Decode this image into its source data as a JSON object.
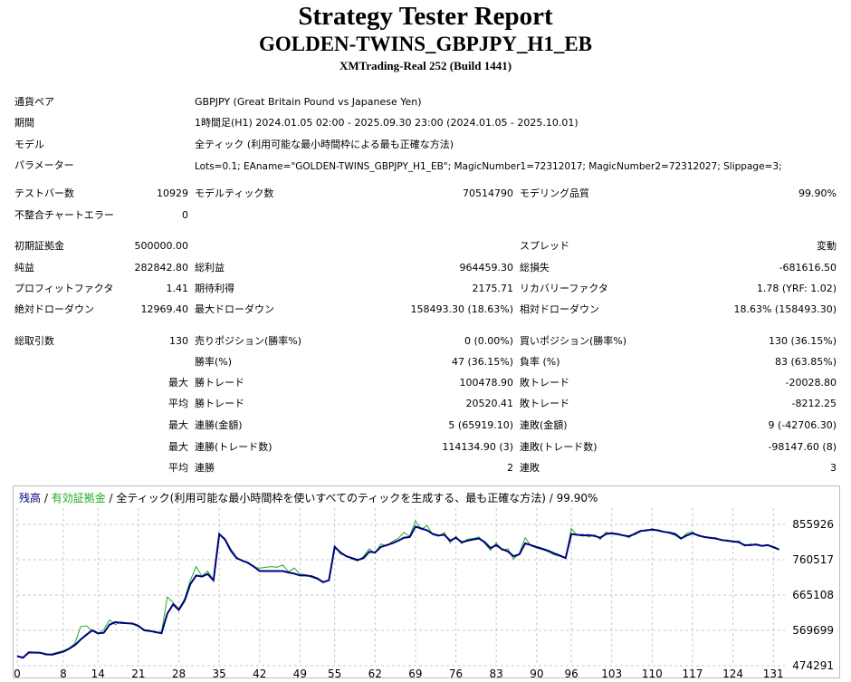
{
  "header": {
    "title": "Strategy Tester Report",
    "subtitle": "GOLDEN-TWINS_GBPJPY_H1_EB",
    "server": "XMTrading-Real 252 (Build 1441)"
  },
  "info": {
    "symbol_label": "通貨ペア",
    "symbol_value": "GBPJPY (Great Britain Pound vs Japanese Yen)",
    "period_label": "期間",
    "period_value": "1時間足(H1) 2024.01.05 02:00 - 2025.09.30 23:00 (2024.01.05 - 2025.10.01)",
    "model_label": "モデル",
    "model_value": "全ティック (利用可能な最小時間枠による最も正確な方法)",
    "params_label": "パラメーター",
    "params_value": "Lots=0.1; EAname=\"GOLDEN-TWINS_GBPJPY_H1_EB\"; MagicNumber1=72312017; MagicNumber2=72312027; Slippage=3;"
  },
  "stats": {
    "bars_label": "テストバー数",
    "bars_value": "10929",
    "ticks_label": "モデルティック数",
    "ticks_value": "70514790",
    "quality_label": "モデリング品質",
    "quality_value": "99.90%",
    "mismatch_label": "不整合チャートエラー",
    "mismatch_value": "0",
    "deposit_label": "初期証拠金",
    "deposit_value": "500000.00",
    "spread_label": "スプレッド",
    "spread_value": "変動",
    "net_label": "純益",
    "net_value": "282842.80",
    "gross_profit_label": "総利益",
    "gross_profit_value": "964459.30",
    "gross_loss_label": "総損失",
    "gross_loss_value": "-681616.50",
    "pf_label": "プロフィットファクタ",
    "pf_value": "1.41",
    "payoff_label": "期待利得",
    "payoff_value": "2175.71",
    "recovery_label": "リカバリーファクタ",
    "recovery_value": "1.78 (YRF: 1.02)",
    "abs_dd_label": "絶対ドローダウン",
    "abs_dd_value": "12969.40",
    "max_dd_label": "最大ドローダウン",
    "max_dd_value": "158493.30 (18.63%)",
    "rel_dd_label": "相対ドローダウン",
    "rel_dd_value": "18.63% (158493.30)",
    "trades_label": "総取引数",
    "trades_value": "130",
    "short_label": "売りポジション(勝率%)",
    "short_value": "0 (0.00%)",
    "long_label": "買いポジション(勝率%)",
    "long_value": "130 (36.15%)",
    "winrate_label": "勝率(%)",
    "winrate_value": "47 (36.15%)",
    "lossrate_label": "負率 (%)",
    "lossrate_value": "83 (63.85%)",
    "max_prefix": "最大",
    "avg_prefix": "平均",
    "largest_win_label": "勝トレード",
    "largest_win_value": "100478.90",
    "largest_loss_label": "敗トレード",
    "largest_loss_value": "-20028.80",
    "avg_win_label": "勝トレード",
    "avg_win_value": "20520.41",
    "avg_loss_label": "敗トレード",
    "avg_loss_value": "-8212.25",
    "max_consec_win_label": "連勝(金額)",
    "max_consec_win_value": "5 (65919.10)",
    "max_consec_loss_label": "連敗(金額)",
    "max_consec_loss_value": "9 (-42706.30)",
    "max_consec_profit_label": "連勝(トレード数)",
    "max_consec_profit_value": "114134.90 (3)",
    "max_consec_lossamt_label": "連敗(トレード数)",
    "max_consec_lossamt_value": "-98147.60 (8)",
    "avg_consec_win_label": "連勝",
    "avg_consec_win_value": "2",
    "avg_consec_loss_label": "連敗",
    "avg_consec_loss_value": "3"
  },
  "chart_data": {
    "type": "line",
    "legend": {
      "balance": "残高",
      "sep1": " / ",
      "equity": "有効証拠金",
      "sep2": " / 全ティック(利用可能な最小時間枠を使いすべてのティックを生成する、最も正確な方法) / 99.90%"
    },
    "colors": {
      "balance": "#000080",
      "equity": "#22aa22",
      "grid": "#c8c8c8"
    },
    "grid": true,
    "ylim": [
      474291,
      900000
    ],
    "xlim": [
      0,
      133
    ],
    "y_ticks": [
      "855926",
      "760517",
      "665108",
      "569699",
      "474291"
    ],
    "y_tick_values": [
      855926,
      760517,
      665108,
      569699,
      474291
    ],
    "x_ticks": [
      "0",
      "8",
      "14",
      "21",
      "28",
      "35",
      "42",
      "49",
      "55",
      "62",
      "69",
      "76",
      "83",
      "90",
      "96",
      "103",
      "110",
      "117",
      "124",
      "131"
    ],
    "x_tick_values": [
      0,
      8,
      14,
      21,
      28,
      35,
      42,
      49,
      55,
      62,
      69,
      76,
      83,
      90,
      96,
      103,
      110,
      117,
      124,
      131
    ],
    "series": [
      {
        "name": "残高",
        "x": [
          0,
          1,
          2,
          4,
          5,
          6,
          8,
          9,
          10,
          11,
          12,
          13,
          14,
          15,
          16,
          17,
          18,
          20,
          21,
          22,
          23,
          24,
          25,
          26,
          27,
          28,
          29,
          30,
          31,
          32,
          33,
          34,
          35,
          36,
          37,
          38,
          39,
          40,
          41,
          42,
          44,
          45,
          46,
          47,
          48,
          49,
          50,
          51,
          52,
          53,
          54,
          55,
          56,
          57,
          58,
          59,
          60,
          61,
          62,
          63,
          64,
          65,
          66,
          67,
          68,
          69,
          70,
          71,
          72,
          73,
          74,
          75,
          76,
          77,
          78,
          79,
          80,
          81,
          82,
          83,
          84,
          85,
          86,
          87,
          88,
          89,
          90,
          91,
          92,
          93,
          94,
          95,
          96,
          97,
          98,
          99,
          100,
          101,
          102,
          103,
          104,
          105,
          106,
          107,
          108,
          109,
          110,
          111,
          112,
          113,
          114,
          115,
          116,
          117,
          118,
          119,
          120,
          121,
          122,
          123,
          124,
          125,
          126,
          127,
          128,
          129,
          130,
          131,
          132
        ],
        "y": [
          500000,
          496000,
          510000,
          509000,
          505000,
          504000,
          512000,
          520000,
          530000,
          545000,
          558000,
          570000,
          562000,
          563000,
          585000,
          592000,
          590000,
          588000,
          582000,
          570000,
          568000,
          565000,
          562000,
          615000,
          640000,
          625000,
          650000,
          695000,
          718000,
          715000,
          722000,
          705000,
          830000,
          815000,
          785000,
          765000,
          758000,
          752000,
          742000,
          730000,
          730000,
          730000,
          730000,
          726000,
          723000,
          718000,
          718000,
          716000,
          710000,
          700000,
          705000,
          795000,
          780000,
          770000,
          765000,
          760000,
          765000,
          782000,
          780000,
          795000,
          800000,
          805000,
          812000,
          820000,
          822000,
          850000,
          845000,
          840000,
          830000,
          826000,
          828000,
          812000,
          820000,
          808000,
          812000,
          815000,
          818000,
          808000,
          792000,
          800000,
          789000,
          783000,
          770000,
          775000,
          805000,
          800000,
          795000,
          790000,
          785000,
          778000,
          772000,
          765000,
          830000,
          828000,
          826000,
          827000,
          825000,
          820000,
          830000,
          832000,
          830000,
          826000,
          824000,
          830000,
          838000,
          840000,
          842000,
          840000,
          836000,
          834000,
          830000,
          818000,
          826000,
          832000,
          826000,
          822000,
          820000,
          818000,
          814000,
          812000,
          810000,
          808000,
          800000,
          800000,
          802000,
          798000,
          800000,
          795000,
          788000
        ]
      },
      {
        "name": "有効証拠金",
        "x": [
          0,
          1,
          2,
          4,
          5,
          6,
          8,
          9,
          10,
          11,
          12,
          13,
          14,
          15,
          16,
          17,
          18,
          20,
          21,
          22,
          23,
          24,
          25,
          26,
          27,
          28,
          29,
          30,
          31,
          32,
          33,
          34,
          35,
          36,
          37,
          38,
          39,
          40,
          41,
          42,
          44,
          45,
          46,
          47,
          48,
          49,
          50,
          51,
          52,
          53,
          54,
          55,
          56,
          57,
          58,
          59,
          60,
          61,
          62,
          63,
          64,
          65,
          66,
          67,
          68,
          69,
          70,
          71,
          72,
          73,
          74,
          75,
          76,
          77,
          78,
          79,
          80,
          81,
          82,
          83,
          84,
          85,
          86,
          87,
          88,
          89,
          90,
          91,
          92,
          93,
          94,
          95,
          96,
          97,
          98,
          99,
          100,
          101,
          102,
          103,
          104,
          105,
          106,
          107,
          108,
          109,
          110,
          111,
          112,
          113,
          114,
          115,
          116,
          117,
          118,
          119,
          120,
          121,
          122,
          123,
          124,
          125,
          126,
          127,
          128,
          129,
          130,
          131,
          132
        ],
        "y": [
          502000,
          494000,
          512000,
          510000,
          503000,
          506000,
          515000,
          522000,
          535000,
          580000,
          582000,
          568000,
          560000,
          572000,
          598000,
          585000,
          593000,
          586000,
          580000,
          572000,
          570000,
          563000,
          565000,
          660000,
          645000,
          628000,
          655000,
          705000,
          742000,
          716000,
          730000,
          706000,
          830000,
          818000,
          790000,
          768000,
          756000,
          754000,
          740000,
          738000,
          742000,
          740000,
          746000,
          728000,
          738000,
          722000,
          720000,
          713000,
          708000,
          698000,
          706000,
          798000,
          776000,
          772000,
          762000,
          757000,
          770000,
          790000,
          778000,
          803000,
          798000,
          810000,
          818000,
          834000,
          824000,
          866000,
          842000,
          853000,
          828000,
          824000,
          834000,
          806000,
          824000,
          804000,
          816000,
          818000,
          822000,
          804000,
          786000,
          806000,
          786000,
          790000,
          762000,
          778000,
          820000,
          798000,
          792000,
          788000,
          782000,
          774000,
          770000,
          765000,
          845000,
          826000,
          830000,
          822000,
          828000,
          815000,
          835000,
          830000,
          828000,
          826000,
          820000,
          833000,
          840000,
          838000,
          845000,
          838000,
          836000,
          832000,
          826000,
          816000,
          832000,
          836000,
          824000,
          824000,
          818000,
          820000,
          812000,
          814000,
          808000,
          812000,
          797000,
          803000,
          800000,
          798000,
          802000,
          792000,
          790000
        ]
      }
    ]
  }
}
